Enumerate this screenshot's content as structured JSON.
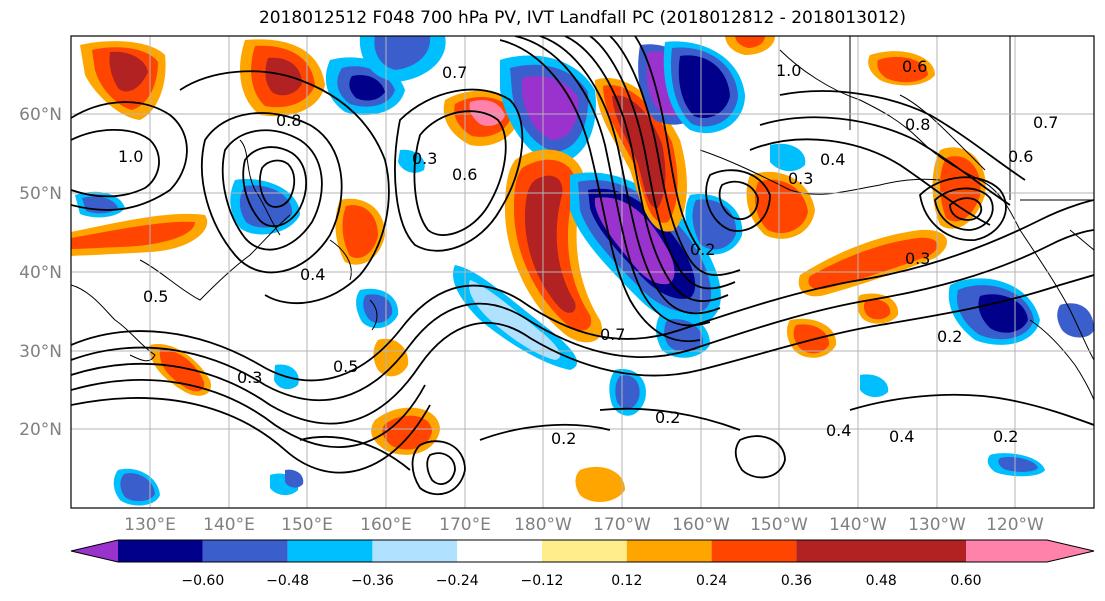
{
  "title": "2018012512 F048 700 hPa PV, IVT Landfall PC (2018012812 - 2018013012)",
  "map": {
    "lat_labels": [
      "60°N",
      "50°N",
      "40°N",
      "30°N",
      "20°N"
    ],
    "lon_labels": [
      "130°E",
      "140°E",
      "150°E",
      "160°E",
      "170°E",
      "180°W",
      "170°W",
      "160°W",
      "150°W",
      "140°W",
      "130°W",
      "120°W"
    ],
    "contour_labels": [
      "0.7",
      "0.6",
      "0.3",
      "0.5",
      "0.2",
      "0.4",
      "0.8",
      "1.0",
      "0.6",
      "0.3",
      "0.2",
      "0.2",
      "0.4",
      "0.4",
      "0.2",
      "0.7",
      "0.2",
      "0.8",
      "0.3",
      "0.4",
      "0.6",
      "0.7",
      "0.5",
      "0.3",
      "1.0"
    ]
  },
  "colorbar": {
    "tick_labels": [
      "−0.60",
      "−0.48",
      "−0.36",
      "−0.24",
      "−0.12",
      "0.12",
      "0.24",
      "0.36",
      "0.48",
      "0.60"
    ],
    "colors": [
      "#9a32cd",
      "#00008b",
      "#3a5fcd",
      "#00bfff",
      "#b0e2ff",
      "#ffffff",
      "#ffec8b",
      "#ffa500",
      "#ff4500",
      "#b22222",
      "#ff82ab"
    ]
  }
}
